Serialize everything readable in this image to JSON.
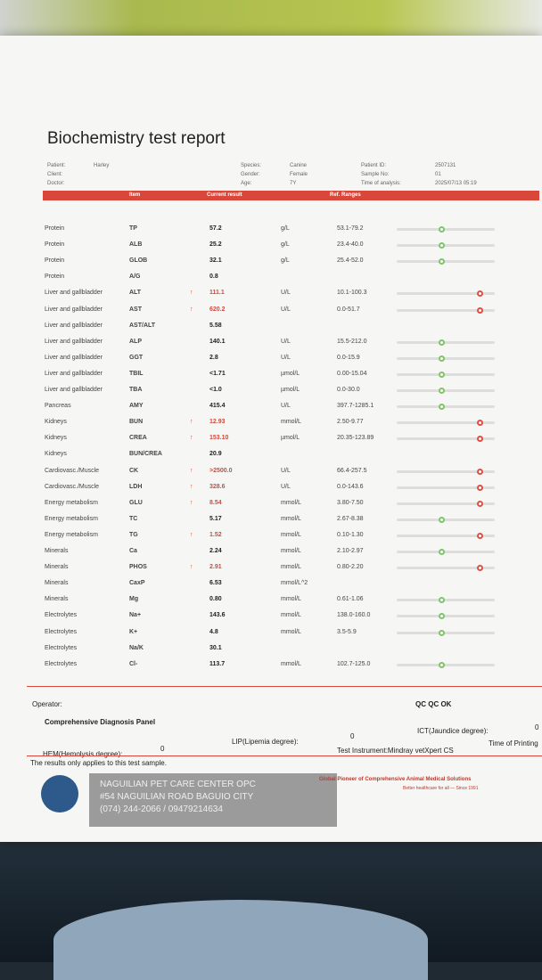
{
  "header": {
    "title": "Biochemistry test report",
    "fields": [
      {
        "label": "Patient:",
        "value": "Harley"
      },
      {
        "label": "Client:"
      },
      {
        "label": "Doctor:"
      },
      {
        "label": "Species:",
        "value": "Canine"
      },
      {
        "label": "Gender:",
        "value": "Female"
      },
      {
        "label": "Age:",
        "value": "7Y"
      },
      {
        "label": "Patient ID:",
        "value": "2507131"
      },
      {
        "label": "Sample No:",
        "value": "01"
      },
      {
        "label": "Time of analysis:",
        "value": "2025/07/13 05:19"
      }
    ]
  },
  "table": {
    "columns": [
      "Item",
      "Current result",
      "Ref. Ranges"
    ],
    "rows": [
      {
        "category": "Protein",
        "item": "TP",
        "result": "57.2",
        "unit": "g/L",
        "range": "53.1-79.2"
      },
      {
        "category": "Protein",
        "item": "ALB",
        "result": "25.2",
        "unit": "g/L",
        "range": "23.4-40.0"
      },
      {
        "category": "Protein",
        "item": "GLOB",
        "result": "32.1",
        "unit": "g/L",
        "range": "25.4-52.0"
      },
      {
        "category": "Protein",
        "item": "A/G",
        "result": "0.8"
      },
      {
        "category": "Liver and gallbladder",
        "item": "ALT",
        "flag": "↑",
        "result": "111.1",
        "unit": "U/L",
        "range": "10.1-100.3"
      },
      {
        "category": "Liver and gallbladder",
        "item": "AST",
        "flag": "↑",
        "result": "620.2",
        "unit": "U/L",
        "range": "0.0-51.7"
      },
      {
        "category": "Liver and gallbladder",
        "item": "AST/ALT",
        "result": "5.58"
      },
      {
        "category": "Liver and gallbladder",
        "item": "ALP",
        "result": "140.1",
        "unit": "U/L",
        "range": "15.5-212.0"
      },
      {
        "category": "Liver and gallbladder",
        "item": "GGT",
        "result": "2.8",
        "unit": "U/L",
        "range": "0.0-15.9"
      },
      {
        "category": "Liver and gallbladder",
        "item": "TBIL",
        "result": "<1.71",
        "unit": "µmol/L",
        "range": "0.00-15.04"
      },
      {
        "category": "Liver and gallbladder",
        "item": "TBA",
        "result": "<1.0",
        "unit": "µmol/L",
        "range": "0.0-30.0"
      },
      {
        "category": "Pancreas",
        "item": "AMY",
        "result": "415.4",
        "unit": "U/L",
        "range": "397.7-1285.1"
      },
      {
        "category": "Kidneys",
        "item": "BUN",
        "flag": "↑",
        "result": "12.93",
        "unit": "mmol/L",
        "range": "2.50-9.77"
      },
      {
        "category": "Kidneys",
        "item": "CREA",
        "flag": "↑",
        "result": "153.10",
        "unit": "µmol/L",
        "range": "20.35-123.89"
      },
      {
        "category": "Kidneys",
        "item": "BUN/CREA",
        "result": "20.9"
      },
      {
        "category": "Cardiovasc./Muscle",
        "item": "CK",
        "flag": "↑",
        "result": ">2500.0",
        "unit": "U/L",
        "range": "66.4-257.5"
      },
      {
        "category": "Cardiovasc./Muscle",
        "item": "LDH",
        "flag": "↑",
        "result": "328.6",
        "unit": "U/L",
        "range": "0.0-143.6"
      },
      {
        "category": "Energy metabolism",
        "item": "GLU",
        "flag": "↑",
        "result": "8.54",
        "unit": "mmol/L",
        "range": "3.80-7.50"
      },
      {
        "category": "Energy metabolism",
        "item": "TC",
        "result": "5.17",
        "unit": "mmol/L",
        "range": "2.67-8.38"
      },
      {
        "category": "Energy metabolism",
        "item": "TG",
        "flag": "↑",
        "result": "1.52",
        "unit": "mmol/L",
        "range": "0.10-1.30"
      },
      {
        "category": "Minerals",
        "item": "Ca",
        "result": "2.24",
        "unit": "mmol/L",
        "range": "2.10-2.97"
      },
      {
        "category": "Minerals",
        "item": "PHOS",
        "flag": "↑",
        "result": "2.91",
        "unit": "mmol/L",
        "range": "0.80-2.20"
      },
      {
        "category": "Minerals",
        "item": "CaxP",
        "result": "6.53",
        "unit": "mmol/L^2"
      },
      {
        "category": "Minerals",
        "item": "Mg",
        "result": "0.80",
        "unit": "mmol/L",
        "range": "0.61-1.06"
      },
      {
        "category": "Electrolytes",
        "item": "Na+",
        "result": "143.6",
        "unit": "mmol/L",
        "range": "138.0-160.0"
      },
      {
        "category": "Electrolytes",
        "item": "K+",
        "result": "4.8",
        "unit": "mmol/L",
        "range": "3.5-5.9"
      },
      {
        "category": "Electrolytes",
        "item": "Na/K",
        "result": "30.1"
      },
      {
        "category": "Electrolytes",
        "item": "Cl-",
        "result": "113.7",
        "unit": "mmol/L",
        "range": "102.7-125.0"
      }
    ]
  },
  "footer": {
    "operator": "Operator:",
    "qc": "QC QC OK",
    "panel": "Comprehensive Diagnosis Panel",
    "hem_label": "HEM(Hemolysis degree):",
    "hem": "0",
    "lip_label": "LIP(Lipemia degree):",
    "lip": "0",
    "ict_label": "ICT(Jaundice degree):",
    "ict": "0",
    "instrument": "Test Instrument:Mindray vetXpert CS",
    "printing": "Time of Printing",
    "note": "The results only applies to this test sample.",
    "clinic_name": "NAGUILIAN PET CARE CENTER OPC",
    "clinic_address": "#54 NAGUILIAN ROAD BAGUIO CITY",
    "clinic_phone": "(074) 244-2066 / 09479214634",
    "slogan": "Global Pioneer of Comprehensive Animal Medical Solutions",
    "tagline": "Better healthcare for all — Since 1991"
  }
}
